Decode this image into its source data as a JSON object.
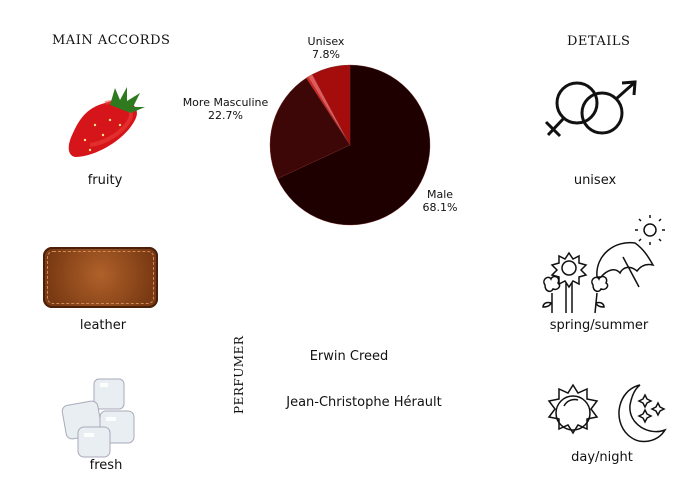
{
  "main_accords": {
    "title": "MAIN ACCORDS",
    "items": [
      {
        "label": "fruity",
        "icon": "strawberry-icon"
      },
      {
        "label": "leather",
        "icon": "leather-icon"
      },
      {
        "label": "fresh",
        "icon": "ice-cubes-icon"
      }
    ]
  },
  "details": {
    "title": "DETAILS",
    "items": [
      {
        "label": "unisex",
        "icon": "gender-symbols-icon"
      },
      {
        "label": "spring/summer",
        "icon": "flowers-umbrella-sun-icon"
      },
      {
        "label": "day/night",
        "icon": "sun-moon-icon"
      }
    ]
  },
  "perfumer": {
    "title": "PERFUMER",
    "names": [
      "Erwin Creed",
      "Jean-Christophe Hérault"
    ]
  },
  "chart_data": {
    "type": "pie",
    "slices": [
      {
        "name": "Male",
        "value": 68.1,
        "label": "Male",
        "pct_label": "68.1%",
        "color": "#1f0000"
      },
      {
        "name": "More Masculine",
        "value": 22.7,
        "label": "More Masculine",
        "pct_label": "22.7%",
        "color": "#3d0707"
      },
      {
        "name": "",
        "value": 0.4,
        "color": "#e3241c"
      },
      {
        "name": "",
        "value": 1.0,
        "color": "#e25a5a"
      },
      {
        "name": "Unisex",
        "value": 7.8,
        "label": "Unisex",
        "pct_label": "7.8%",
        "color": "#a50d0d"
      }
    ]
  }
}
